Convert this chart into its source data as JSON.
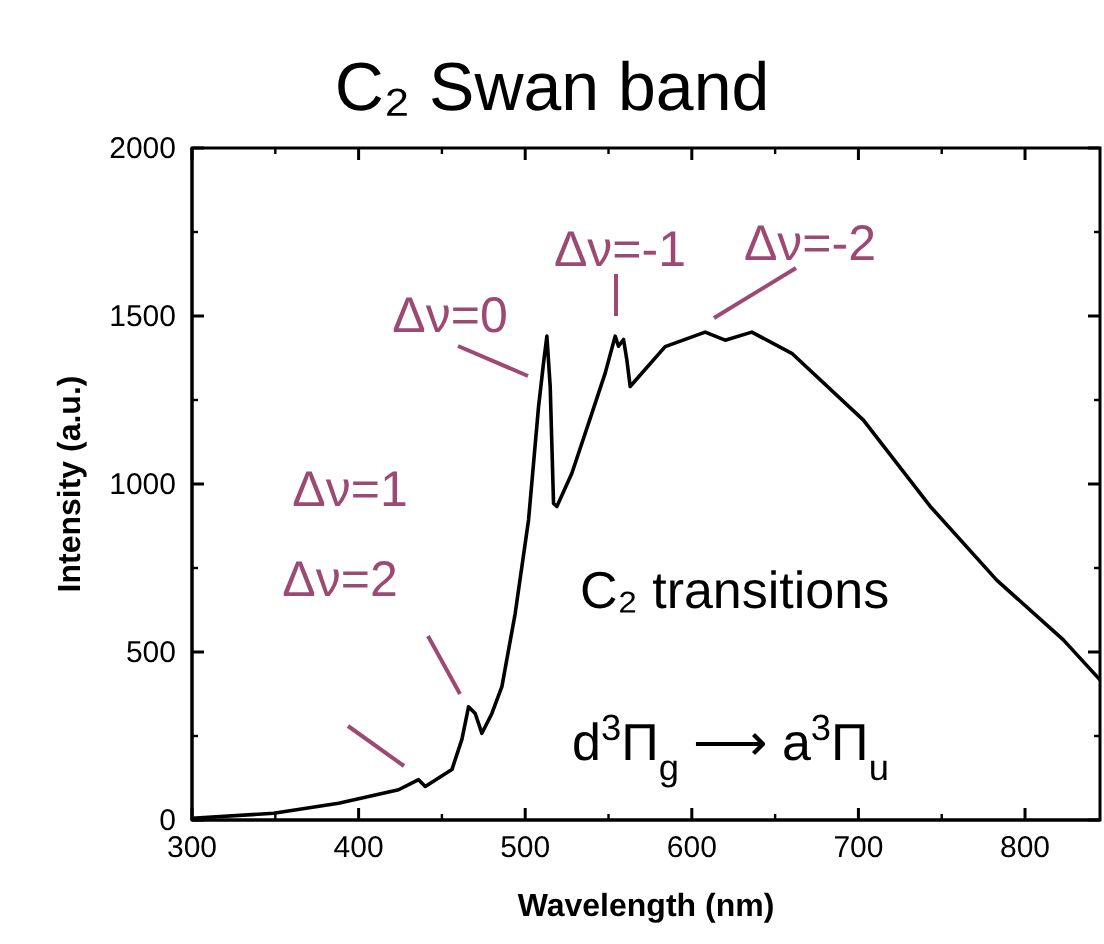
{
  "chart_data": {
    "type": "line",
    "title": "C₂ Swan band",
    "xlabel": "Wavelength (nm)",
    "ylabel": "Intensity (a.u.)",
    "xlim": [
      300,
      845
    ],
    "xticks": [
      300,
      400,
      500,
      600,
      700,
      800
    ],
    "ylim": [
      0,
      2000
    ],
    "yticks": [
      0,
      500,
      1000,
      1500,
      2000
    ],
    "grid": false,
    "marker": "none",
    "line_style": "solid",
    "series": [
      {
        "color": "#000000",
        "x": [
          300,
          349,
          388,
          424,
          436,
          440,
          456,
          462,
          466,
          470,
          474,
          480,
          486,
          494,
          502,
          508,
          511,
          513,
          515,
          517,
          519,
          528,
          540,
          548,
          554,
          556,
          559,
          561,
          563,
          584,
          608,
          620,
          636,
          660,
          703,
          743,
          783,
          823,
          845
        ],
        "values": [
          5,
          20,
          50,
          90,
          120,
          100,
          150,
          240,
          337,
          317,
          258,
          317,
          397,
          615,
          893,
          1230,
          1360,
          1440,
          1290,
          942,
          933,
          1032,
          1210,
          1330,
          1440,
          1410,
          1430,
          1370,
          1290,
          1409,
          1452,
          1428,
          1452,
          1389,
          1190,
          934,
          714,
          536,
          417
        ]
      }
    ],
    "annotations": [
      "Δν=2",
      "Δν=1",
      "Δν=0",
      "Δν=-1",
      "Δν=-2",
      "C₂ transitions",
      "d$^{3}$Π$_{g}$ ⟶ a$^{3}$Π$_{u}$"
    ]
  }
}
